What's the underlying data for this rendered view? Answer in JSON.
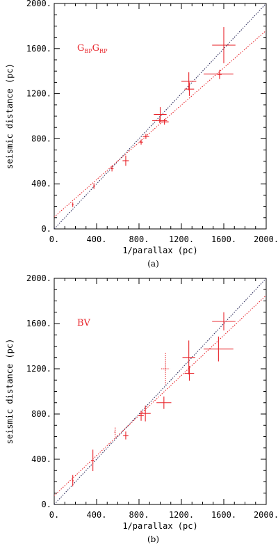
{
  "chart_data": [
    {
      "type": "scatter",
      "panel_caption": "(a)",
      "annotation": {
        "main": "G",
        "sub1": "BP",
        "main2": "G",
        "sub2": "RP"
      },
      "xlabel": "1/parallax (pc)",
      "ylabel": "seismic distance (pc)",
      "xlim": [
        0,
        2000
      ],
      "ylim": [
        0,
        2000
      ],
      "xticks": [
        0,
        400,
        800,
        1200,
        1600,
        2000
      ],
      "yticks": [
        0,
        400,
        800,
        1200,
        1600,
        2000
      ],
      "xtick_labels": [
        "0.",
        "400.",
        "800.",
        "1200.",
        "1600.",
        "2000."
      ],
      "ytick_labels": [
        "0.",
        "400.",
        "800.",
        "1200.",
        "1600.",
        "2000."
      ],
      "colors": {
        "points": "#e8242a",
        "fit": "#e8242a",
        "identity": "#2a2a5a"
      },
      "lines": [
        {
          "kind": "identity",
          "style": "dotted",
          "color": "#2a2a5a",
          "x": [
            0,
            2000
          ],
          "y": [
            0,
            2000
          ]
        },
        {
          "kind": "fit",
          "style": "dotted",
          "color": "#e8242a",
          "x": [
            -20,
            2000
          ],
          "y": [
            90,
            1760
          ]
        }
      ],
      "points": [
        {
          "x": 175,
          "y": 215,
          "xerr": 5,
          "yerr": 20,
          "style": "solid"
        },
        {
          "x": 375,
          "y": 380,
          "xerr": 8,
          "yerr": 25,
          "style": "solid"
        },
        {
          "x": 545,
          "y": 535,
          "xerr": 15,
          "yerr": 25,
          "style": "solid"
        },
        {
          "x": 675,
          "y": 605,
          "xerr": 30,
          "yerr": 45,
          "style": "solid"
        },
        {
          "x": 820,
          "y": 770,
          "xerr": 18,
          "yerr": 22,
          "style": "solid"
        },
        {
          "x": 865,
          "y": 820,
          "xerr": 30,
          "yerr": 22,
          "style": "solid"
        },
        {
          "x": 1000,
          "y": 1015,
          "xerr": 60,
          "yerr": 65,
          "style": "solid"
        },
        {
          "x": 1040,
          "y": 950,
          "xerr": 40,
          "yerr": 25,
          "style": "solid"
        },
        {
          "x": 995,
          "y": 960,
          "xerr": 70,
          "yerr": 20,
          "style": "solid"
        },
        {
          "x": 1270,
          "y": 1310,
          "xerr": 70,
          "yerr": 80,
          "style": "solid"
        },
        {
          "x": 1275,
          "y": 1240,
          "xerr": 45,
          "yerr": 60,
          "style": "solid"
        },
        {
          "x": 1560,
          "y": 1370,
          "xerr": 20,
          "yerr": 40,
          "style": "solid"
        },
        {
          "x": 1550,
          "y": 1375,
          "xerr": 140,
          "yerr": 0,
          "style": "solid"
        },
        {
          "x": 1600,
          "y": 1630,
          "xerr": 110,
          "yerr": 160,
          "style": "solid"
        }
      ]
    },
    {
      "type": "scatter",
      "panel_caption": "(b)",
      "annotation": {
        "main": "BV"
      },
      "xlabel": "1/parallax (pc)",
      "ylabel": "seismic distance (pc)",
      "xlim": [
        0,
        2000
      ],
      "ylim": [
        0,
        2000
      ],
      "xticks": [
        0,
        400,
        800,
        1200,
        1600,
        2000
      ],
      "yticks": [
        0,
        400,
        800,
        1200,
        1600,
        2000
      ],
      "xtick_labels": [
        "0.",
        "400.",
        "800.",
        "1200.",
        "1600.",
        "2000."
      ],
      "ytick_labels": [
        "0.",
        "400.",
        "800.",
        "1200.",
        "1600.",
        "2000."
      ],
      "colors": {
        "points": "#e8242a",
        "fit": "#e8242a",
        "identity": "#2a2a5a"
      },
      "lines": [
        {
          "kind": "identity",
          "style": "dotted",
          "color": "#2a2a5a",
          "x": [
            0,
            2000
          ],
          "y": [
            0,
            2000
          ]
        },
        {
          "kind": "fit",
          "style": "dotted",
          "color": "#e8242a",
          "x": [
            -20,
            2000
          ],
          "y": [
            60,
            1850
          ]
        }
      ],
      "points": [
        {
          "x": 175,
          "y": 210,
          "xerr": 5,
          "yerr": 50,
          "style": "solid"
        },
        {
          "x": 365,
          "y": 390,
          "xerr": 10,
          "yerr": 95,
          "style": "solid"
        },
        {
          "x": 575,
          "y": 640,
          "xerr": 5,
          "yerr": 40,
          "style": "dotted"
        },
        {
          "x": 675,
          "y": 610,
          "xerr": 25,
          "yerr": 35,
          "style": "solid"
        },
        {
          "x": 820,
          "y": 785,
          "xerr": 25,
          "yerr": 45,
          "style": "solid"
        },
        {
          "x": 860,
          "y": 805,
          "xerr": 50,
          "yerr": 70,
          "style": "solid"
        },
        {
          "x": 1050,
          "y": 1200,
          "xerr": 40,
          "yerr": 140,
          "style": "dotted"
        },
        {
          "x": 1035,
          "y": 900,
          "xerr": 70,
          "yerr": 55,
          "style": "solid"
        },
        {
          "x": 1270,
          "y": 1300,
          "xerr": 60,
          "yerr": 150,
          "style": "solid"
        },
        {
          "x": 1275,
          "y": 1160,
          "xerr": 45,
          "yerr": 65,
          "style": "solid"
        },
        {
          "x": 1550,
          "y": 1375,
          "xerr": 140,
          "yerr": 110,
          "style": "solid"
        },
        {
          "x": 1600,
          "y": 1620,
          "xerr": 110,
          "yerr": 80,
          "style": "solid"
        }
      ]
    }
  ]
}
